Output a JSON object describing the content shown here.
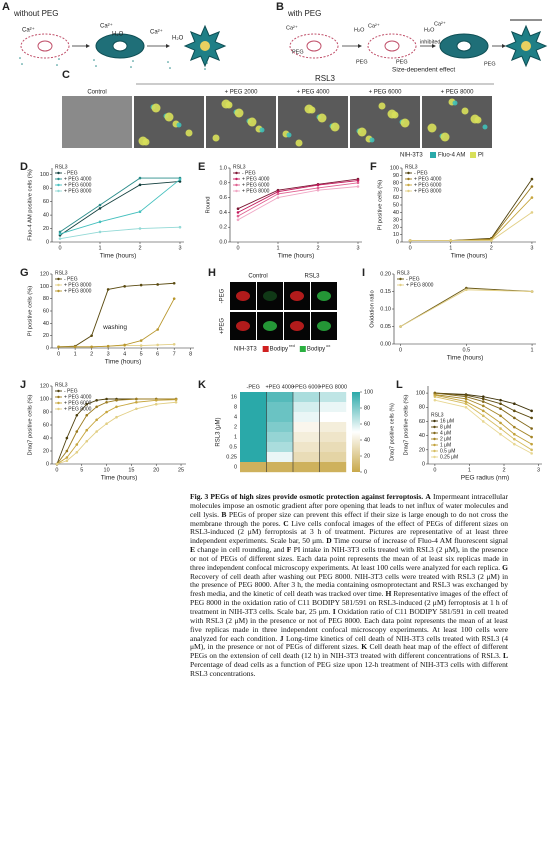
{
  "panels": {
    "A": {
      "label": "A",
      "title": "without PEG",
      "texts": [
        "Ca²⁺",
        "Ca²⁺",
        "H₂O",
        "Ca²⁺",
        "H₂O"
      ]
    },
    "B": {
      "label": "B",
      "title": "with PEG",
      "texts": [
        "H₂O",
        "Ca²⁺",
        "Ca²⁺",
        "H₂O",
        "Ca²⁺",
        "PEG",
        "PEG",
        "PEG",
        "inhibited",
        "PEG",
        "Size-dependent effect"
      ]
    },
    "C": {
      "label": "C",
      "group": "RSL3",
      "conditions": [
        "Control",
        null,
        "+ PEG 2000",
        "+ PEG 4000",
        "+ PEG 6000",
        "+ PEG 8000"
      ],
      "legend": [
        "NIH-3T3",
        "Fluo-4 AM",
        "PI"
      ]
    },
    "D": {
      "type": "line",
      "label": "D",
      "legend_title": "RSL3",
      "legend": "upper left",
      "xlabel": "Time (hours)",
      "ylabel": "Fluo-4 AM positive cells (%)",
      "xlim": [
        -0.2,
        3.1
      ],
      "ylim": [
        0,
        110
      ],
      "xticks": [
        0,
        1,
        2,
        3
      ],
      "yticks": [
        0,
        20,
        40,
        60,
        80,
        100
      ],
      "x": [
        0,
        1,
        2,
        3
      ],
      "series": [
        {
          "name": "- PEG",
          "color": "#14403f",
          "values": [
            10,
            50,
            85,
            90
          ]
        },
        {
          "name": "+ PEG 4000",
          "color": "#2a8c8a",
          "values": [
            15,
            55,
            95,
            95
          ]
        },
        {
          "name": "+ PEG 6000",
          "color": "#45c0be",
          "values": [
            12,
            30,
            45,
            93
          ]
        },
        {
          "name": "+ PEG 8000",
          "color": "#92d9d6",
          "values": [
            5,
            15,
            20,
            22
          ]
        }
      ]
    },
    "E": {
      "type": "line",
      "label": "E",
      "legend_title": "RSL3",
      "legend": "upper left",
      "xlabel": "Time (hours)",
      "ylabel": "Round",
      "xlim": [
        -0.2,
        3.1
      ],
      "ylim": [
        0,
        1
      ],
      "xticks": [
        0,
        1,
        2,
        3
      ],
      "yticks": [
        {
          "value": 0,
          "label": "0.0"
        },
        {
          "value": 0.2,
          "label": "0.2"
        },
        {
          "value": 0.4,
          "label": "0.4"
        },
        {
          "value": 0.6,
          "label": "0.6"
        },
        {
          "value": 0.8,
          "label": "0.8"
        },
        {
          "value": 1,
          "label": "1.0"
        }
      ],
      "x": [
        0,
        1,
        2,
        3
      ],
      "series": [
        {
          "name": "- PEG",
          "color": "#7d1634",
          "values": [
            0.45,
            0.7,
            0.78,
            0.85
          ]
        },
        {
          "name": "+ PEG 4000",
          "color": "#c2185b",
          "values": [
            0.4,
            0.68,
            0.77,
            0.83
          ]
        },
        {
          "name": "+ PEG 6000",
          "color": "#e06090",
          "values": [
            0.35,
            0.65,
            0.73,
            0.8
          ]
        },
        {
          "name": "+ PEG 8000",
          "color": "#f0a6c4",
          "values": [
            0.3,
            0.6,
            0.7,
            0.75
          ]
        }
      ]
    },
    "F": {
      "type": "line",
      "label": "F",
      "legend_title": "RSL3",
      "legend": "upper left",
      "xlabel": "Time (hours)",
      "ylabel": "PI positive cells (%)",
      "xlim": [
        -0.2,
        3.1
      ],
      "ylim": [
        0,
        100
      ],
      "xticks": [
        0,
        1,
        2,
        3
      ],
      "yticks": [
        0,
        10,
        20,
        30,
        40,
        50,
        60,
        70,
        80,
        90,
        100
      ],
      "x": [
        0,
        1,
        2,
        3
      ],
      "series": [
        {
          "name": "- PEG",
          "color": "#4d3f0c",
          "values": [
            2,
            2,
            5,
            85
          ]
        },
        {
          "name": "+ PEG 4000",
          "color": "#9a7a1e",
          "values": [
            2,
            2,
            4,
            75
          ]
        },
        {
          "name": "+ PEG 6000",
          "color": "#c7a63e",
          "values": [
            2,
            2,
            3,
            60
          ]
        },
        {
          "name": "+ PEG 8000",
          "color": "#e2cf85",
          "values": [
            2,
            2,
            2,
            40
          ]
        }
      ]
    },
    "G": {
      "type": "line",
      "label": "G",
      "legend_title": "RSL3",
      "legend": "upper left",
      "xlabel": "Time (hours)",
      "ylabel": "PI positive cells (%)",
      "annotation": "washing",
      "xlim": [
        -0.4,
        8.2
      ],
      "ylim": [
        0,
        120
      ],
      "xticks": [
        0,
        1,
        2,
        3,
        4,
        5,
        6,
        7,
        8
      ],
      "yticks": [
        0,
        20,
        40,
        60,
        80,
        100,
        120
      ],
      "x": [
        0,
        1,
        2,
        3,
        4,
        5,
        6,
        7
      ],
      "series": [
        {
          "name": "- PEG",
          "color": "#5a4a10",
          "values": [
            2,
            3,
            20,
            95,
            100,
            102,
            103,
            105
          ]
        },
        {
          "name": "+ PEG 8000",
          "color": "#e2cf85",
          "values": [
            2,
            2,
            2,
            3,
            4,
            4,
            5,
            6
          ]
        },
        {
          "name": "+ PEG 8000",
          "color": "#b8962c",
          "values": [
            2,
            2,
            2,
            3,
            5,
            12,
            30,
            80
          ]
        }
      ]
    },
    "H": {
      "label": "H",
      "columns": [
        "Control",
        "RSL3"
      ],
      "rows": [
        "-PEG",
        "+PEG"
      ],
      "legend": [
        {
          "name": "NIH-3T3"
        },
        {
          "name": "Bodipy",
          "sup": "red"
        },
        {
          "name": "Bodipy",
          "sup": "ox"
        }
      ]
    },
    "I": {
      "type": "line",
      "label": "I",
      "legend_title": "RSL3",
      "legend": "upper left",
      "xlabel": "Time (hours)",
      "ylabel": "Oxidation ratio",
      "xlim": [
        -0.05,
        1.03
      ],
      "ylim": [
        0,
        0.2
      ],
      "xticks": [
        0,
        0.5,
        1
      ],
      "yticks": [
        {
          "value": 0,
          "label": "0.00"
        },
        {
          "value": 0.05,
          "label": "0.05"
        },
        {
          "value": 0.1,
          "label": "0.10"
        },
        {
          "value": 0.15,
          "label": "0.15"
        },
        {
          "value": 0.2,
          "label": "0.20"
        }
      ],
      "x": [
        0,
        0.5,
        1
      ],
      "series": [
        {
          "name": "- PEG",
          "color": "#6b5a16",
          "values": [
            0.05,
            0.16,
            0.15
          ]
        },
        {
          "name": "+ PEG 8000",
          "color": "#e2cf85",
          "values": [
            0.05,
            0.155,
            0.15
          ]
        }
      ]
    },
    "J": {
      "type": "line",
      "label": "J",
      "legend_title": "RSL3",
      "legend": "upper left",
      "xlabel": "Time (hours)",
      "ylabel": "Draq7 positive cells (%)",
      "xlim": [
        -1,
        26
      ],
      "ylim": [
        0,
        120
      ],
      "xticks": [
        0,
        5,
        10,
        15,
        20,
        25
      ],
      "yticks": [
        0,
        20,
        40,
        60,
        80,
        100,
        120
      ],
      "x": [
        0,
        2,
        4,
        6,
        8,
        10,
        12,
        16,
        20,
        24
      ],
      "series": [
        {
          "name": "- PEG",
          "color": "#4d3f0c",
          "values": [
            0,
            40,
            75,
            92,
            98,
            100,
            100,
            100,
            100,
            100
          ]
        },
        {
          "name": "+ PEG 4000",
          "color": "#9a7a1e",
          "values": [
            0,
            20,
            50,
            75,
            88,
            95,
            98,
            100,
            100,
            100
          ]
        },
        {
          "name": "+ PEG 6000",
          "color": "#c7a63e",
          "values": [
            0,
            10,
            30,
            52,
            68,
            80,
            88,
            95,
            98,
            99
          ]
        },
        {
          "name": "+ PEG 8000",
          "color": "#e2cf85",
          "values": [
            0,
            5,
            18,
            35,
            50,
            62,
            72,
            85,
            92,
            95
          ]
        }
      ]
    },
    "K": {
      "type": "heatmap",
      "label": "K",
      "ylabel": "RSL3 (μM)",
      "colorbar_label": "Draq7 positive cells (%)",
      "columns": [
        "-PEG",
        "+PEG 4000",
        "+PEG 6000",
        "+PEG 8000"
      ],
      "rows": [
        "16",
        "8",
        "4",
        "2",
        "1",
        "0.5",
        "0.25",
        "0"
      ],
      "zlim": [
        0,
        100
      ],
      "zticks": [
        0,
        20,
        40,
        60,
        80,
        100
      ],
      "values": [
        [
          100,
          90,
          70,
          65
        ],
        [
          100,
          85,
          60,
          55
        ],
        [
          100,
          85,
          55,
          50
        ],
        [
          100,
          80,
          45,
          40
        ],
        [
          100,
          75,
          40,
          35
        ],
        [
          100,
          70,
          35,
          30
        ],
        [
          100,
          55,
          30,
          25
        ],
        [
          5,
          5,
          5,
          5
        ]
      ]
    },
    "L": {
      "type": "line",
      "label": "L",
      "legend_title": "RSL3",
      "legend": "lower left",
      "xlabel": "PEG radius (nm)",
      "ylabel": "Draq7 positive cells (%)",
      "xlim": [
        -0.2,
        3.1
      ],
      "ylim": [
        0,
        110
      ],
      "xticks": [
        0,
        1,
        2,
        3
      ],
      "yticks": [
        0,
        20,
        40,
        60,
        80,
        100
      ],
      "x": [
        0,
        0.9,
        1.4,
        1.9,
        2.3,
        2.8
      ],
      "series": [
        {
          "name": "16 μM",
          "color": "#3f330a",
          "values": [
            100,
            98,
            95,
            90,
            85,
            75
          ]
        },
        {
          "name": "8 μM",
          "color": "#5f4d12",
          "values": [
            100,
            97,
            92,
            85,
            75,
            65
          ]
        },
        {
          "name": "4 μM",
          "color": "#82681a",
          "values": [
            100,
            95,
            88,
            78,
            65,
            50
          ]
        },
        {
          "name": "2 μM",
          "color": "#a48526",
          "values": [
            98,
            92,
            82,
            68,
            52,
            38
          ]
        },
        {
          "name": "1 μM",
          "color": "#c2a23c",
          "values": [
            97,
            88,
            75,
            58,
            42,
            28
          ]
        },
        {
          "name": "0.5 μM",
          "color": "#d6bd62",
          "values": [
            95,
            85,
            68,
            50,
            35,
            20
          ]
        },
        {
          "name": "0.25 μM",
          "color": "#e8d792",
          "values": [
            90,
            80,
            60,
            42,
            28,
            15
          ]
        }
      ]
    }
  },
  "caption": [
    {
      "b": "Fig. 3 PEGs of high sizes provide osmotic protection against ferroptosis."
    },
    {
      "t": " "
    },
    {
      "b": "A"
    },
    {
      "t": " Impermeant intracellular molecules impose an osmotic gradient after pore opening that leads to net influx of water molecules and cell lysis. "
    },
    {
      "b": "B"
    },
    {
      "t": " PEGs of proper size can prevent this effect if their size is large enough to do not cross the membrane through the pores. "
    },
    {
      "b": "C"
    },
    {
      "t": " Live cells confocal images of the effect of PEGs of different sizes on RSL3-induced (2 μM) ferroptosis at 3 h of treatment. Pictures are representative of at least three independent experiments. Scale bar, 50 μm. "
    },
    {
      "b": "D"
    },
    {
      "t": " Time course of increase of Fluo-4 AM fluorescent signal "
    },
    {
      "b": "E"
    },
    {
      "t": " change in cell rounding, and "
    },
    {
      "b": "F"
    },
    {
      "t": " PI intake in NIH-3T3 cells treated with RSL3 (2 μM), in the presence or not of PEGs of different sizes. Each data point represents the mean of at least six replicas made in three independent confocal microscopy experiments. At least 100 cells were analyzed for each replica. "
    },
    {
      "b": "G"
    },
    {
      "t": " Recovery of cell death after washing out PEG 8000. NIH-3T3 cells were treated with RSL3 (2 μM) in the presence of PEG 8000. After 3 h, the media containing osmoprotectant and RSL3 was exchanged by fresh media, and the kinetic of cell death was tracked over time. "
    },
    {
      "b": "H"
    },
    {
      "t": " Representative images of the effect of PEG 8000 in the oxidation ratio of C11 BODIPY 581/591 on RSL3-induced (2 μM) ferroptosis at 1 h of treatment in NIH-3T3 cells. Scale bar, 25 μm. "
    },
    {
      "b": "I"
    },
    {
      "t": " Oxidation ratio of C11 BODIPY 581/591 in cell treated with RSL3 (2 μM) in the presence or not of PEG 8000. Each data point represents the mean of at least five replicas made in three independent confocal microscopy experiments. At least 100 cells were analyzed for each condition. "
    },
    {
      "b": "J"
    },
    {
      "t": " Long-time kinetics of cell death of NIH-3T3 cells treated with RSL3 (4 μM), in the presence or not of PEGs of different sizes. "
    },
    {
      "b": "K"
    },
    {
      "t": " Cell death heat map of the effect of different PEGs on the extension of cell death (12 h) in NIH-3T3 treated with different concentrations of RSL3. "
    },
    {
      "b": "L"
    },
    {
      "t": " Percentage of dead cells as a function of PEG size upon 12-h treatment of NIH-3T3 cells with different RSL3 concentrations."
    }
  ]
}
